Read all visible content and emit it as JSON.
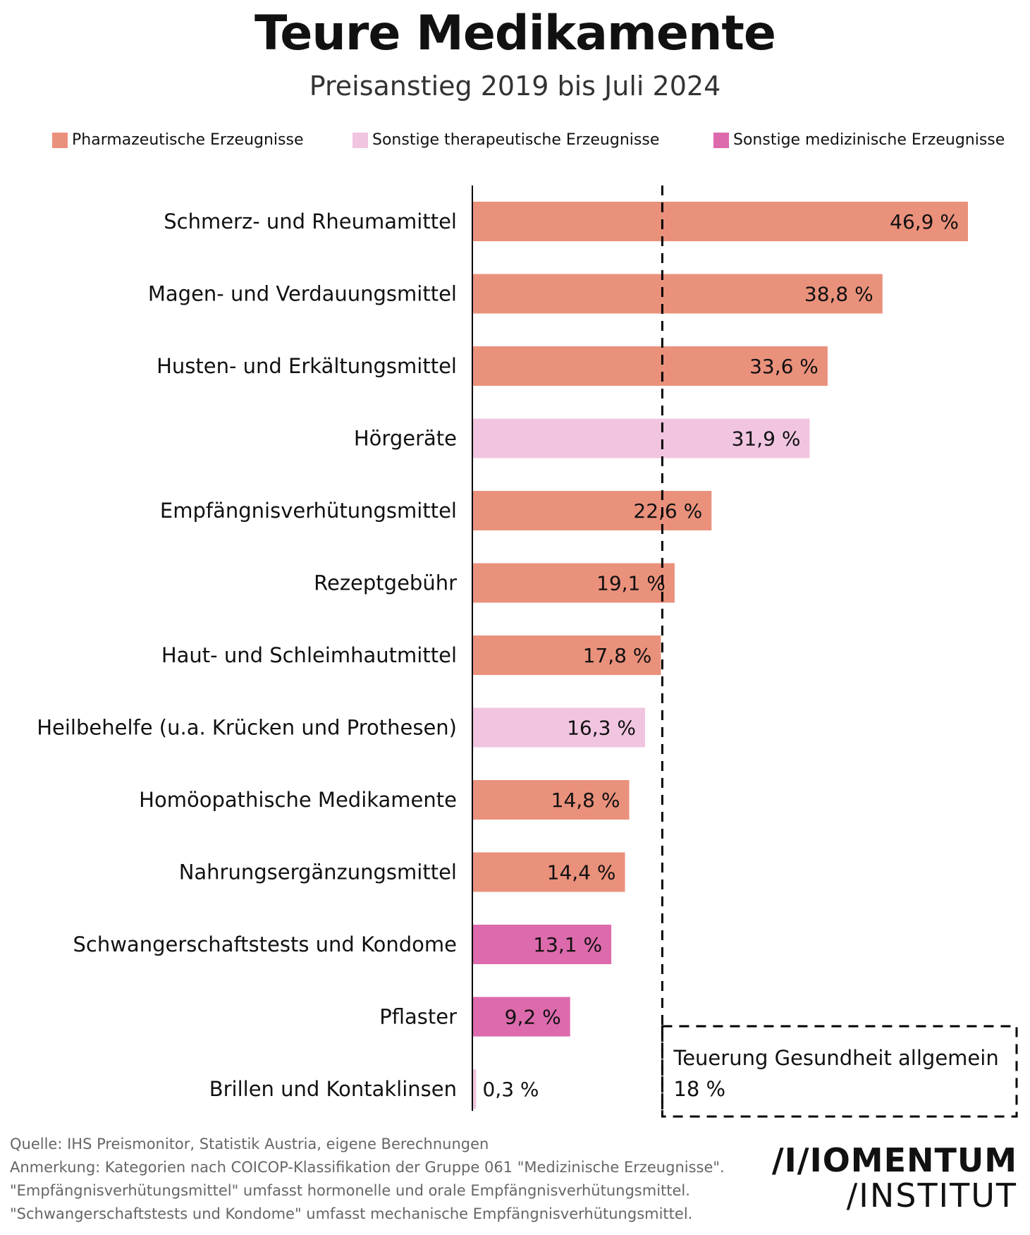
{
  "title": "Teure Medikamente",
  "subtitle": "Preisanstieg 2019 bis Juli 2024",
  "legend": [
    {
      "label": "Pharmazeutische Erzeugnisse",
      "color": "#EA917C"
    },
    {
      "label": "Sonstige therapeutische Erzeugnisse",
      "color": "#F1C5DF"
    },
    {
      "label": "Sonstige medizinische Erzeugnisse",
      "color": "#DD6AAC"
    }
  ],
  "chart_data": {
    "type": "bar",
    "orientation": "horizontal",
    "xlim": [
      0,
      50
    ],
    "categories": [
      "Schmerz- und Rheumamittel",
      "Magen- und Verdauungsmittel",
      "Husten- und Erkältungsmittel",
      "Hörgeräte",
      "Empfängnisverhütungsmittel",
      "Rezeptgebühr",
      "Haut- und Schleimhautmittel",
      "Heilbehelfe (u.a. Krücken und Prothesen)",
      "Homöopathische Medikamente",
      "Nahrungsergänzungsmittel",
      "Schwangerschaftstests und Kondome",
      "Pflaster",
      "Brillen und Kontaklinsen"
    ],
    "values": [
      46.9,
      38.8,
      33.6,
      31.9,
      22.6,
      19.1,
      17.8,
      16.3,
      14.8,
      14.4,
      13.1,
      9.2,
      0.3
    ],
    "value_labels": [
      "46,9 %",
      "38,8 %",
      "33,6 %",
      "31,9 %",
      "22,6 %",
      "19,1 %",
      "17,8 %",
      "16,3 %",
      "14,8 %",
      "14,4 %",
      "13,1 %",
      "9,2 %",
      "0,3 %"
    ],
    "groups": [
      0,
      0,
      0,
      1,
      0,
      0,
      0,
      1,
      0,
      0,
      2,
      2,
      1
    ],
    "reference_line": {
      "value": 18,
      "label_line1": "Teuerung Gesundheit allgemein",
      "label_line2": "18 %"
    }
  },
  "footer": {
    "source": "Quelle: IHS Preismonitor, Statistik Austria, eigene Berechnungen",
    "note1": "Anmerkung: Kategorien nach COICOP-Klassifikation der Gruppe 061 \"Medizinische Erzeugnisse\".",
    "note2": "\"Empfängnisverhütungsmittel\" umfasst hormonelle und orale Empfängnisverhütungsmittel.",
    "note3": "\"Schwangerschaftstests und Kondome\" umfasst mechanische Empfängnisverhütungsmittel."
  },
  "logo": {
    "line1": "/I/IOMENTUM",
    "line2": "/INSTITUT"
  }
}
